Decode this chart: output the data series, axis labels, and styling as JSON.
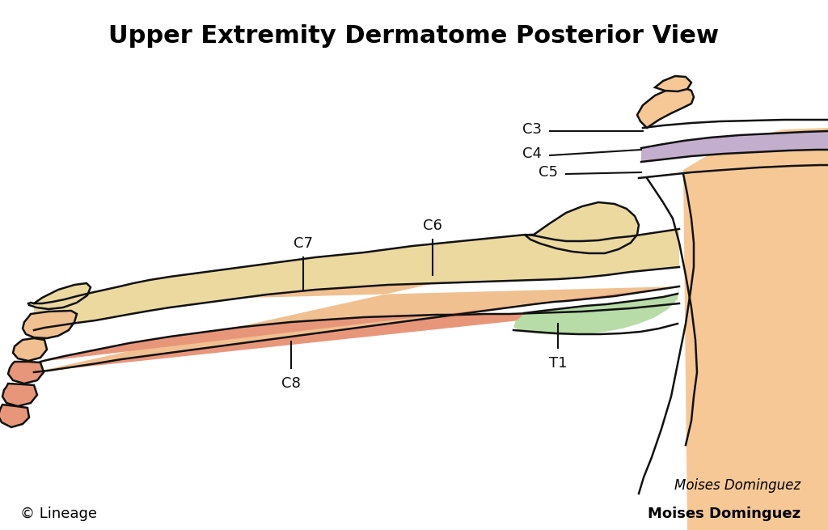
{
  "title": "Upper Extremity Dermatome Posterior View",
  "title_fontsize": 22,
  "title_fontweight": "bold",
  "bg_color": "#ffffff",
  "skin_color": "#F5C896",
  "skin_mid": "#F0BE82",
  "c4_color": "#C4AECE",
  "c5_color": "#EBD9A0",
  "c6_color": "#EBD9A0",
  "c7_color": "#EBD9A0",
  "c8_color": "#E8967A",
  "t1_color": "#B8DCA8",
  "hand_skin": "#F0C090",
  "outline_color": "#111111",
  "label_fontsize": 13,
  "anno_color": "#111111",
  "footer_left": "© Lineage",
  "footer_right": "Moises Dominguez",
  "footer_fontsize": 13,
  "sig_text": "Moises Dominguez"
}
